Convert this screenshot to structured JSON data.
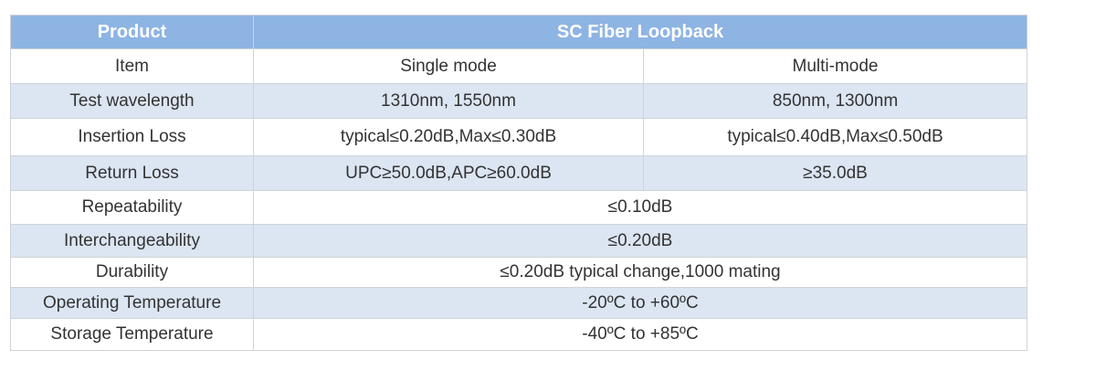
{
  "table": {
    "header": [
      "Product",
      "SC Fiber Loopback"
    ],
    "rows": [
      [
        "Item",
        "Single mode",
        "Multi-mode"
      ],
      [
        "Test wavelength",
        "1310nm, 1550nm",
        "850nm, 1300nm"
      ],
      [
        "Insertion Loss",
        "typical≤0.20dB,Max≤0.30dB",
        "typical≤0.40dB,Max≤0.50dB"
      ],
      [
        "Return Loss",
        "UPC≥50.0dB,APC≥60.0dB",
        "≥35.0dB"
      ],
      [
        "Repeatability",
        "≤0.10dB"
      ],
      [
        "Interchangeability",
        "≤0.20dB"
      ],
      [
        "Durability",
        "≤0.20dB typical change,1000 mating"
      ],
      [
        "Operating Temperature",
        "-20ºC to +60ºC"
      ],
      [
        "Storage Temperature",
        "-40ºC to +85ºC"
      ]
    ]
  }
}
